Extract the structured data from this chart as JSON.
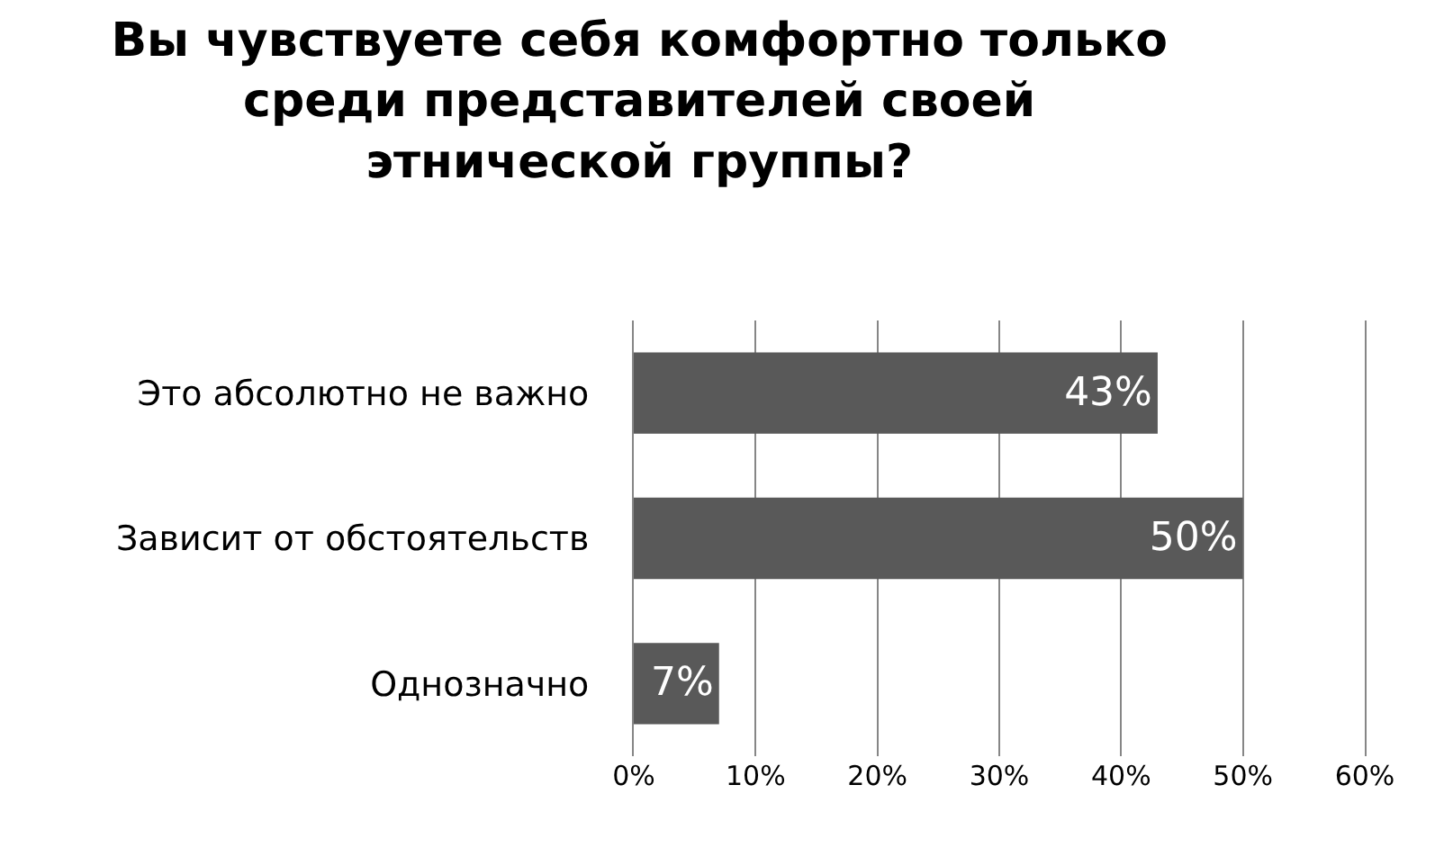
{
  "chart_data": {
    "type": "bar",
    "orientation": "horizontal",
    "title": "Вы чувствуете себя комфортно только\nсреди представителей своей\nэтнической группы?",
    "categories": [
      "Это абсолютно не важно",
      "Зависит от обстоятельств",
      "Однозначно"
    ],
    "values": [
      43,
      50,
      7
    ],
    "value_labels": [
      "43%",
      "50%",
      "7%"
    ],
    "color": "#595959",
    "xlim": [
      0,
      60
    ],
    "xticks": [
      {
        "value": 0,
        "label": "0%"
      },
      {
        "value": 10,
        "label": "10%"
      },
      {
        "value": 20,
        "label": "20%"
      },
      {
        "value": 30,
        "label": "30%"
      },
      {
        "value": 40,
        "label": "40%"
      },
      {
        "value": 50,
        "label": "50%"
      },
      {
        "value": 60,
        "label": "60%"
      }
    ],
    "grid": "x"
  }
}
